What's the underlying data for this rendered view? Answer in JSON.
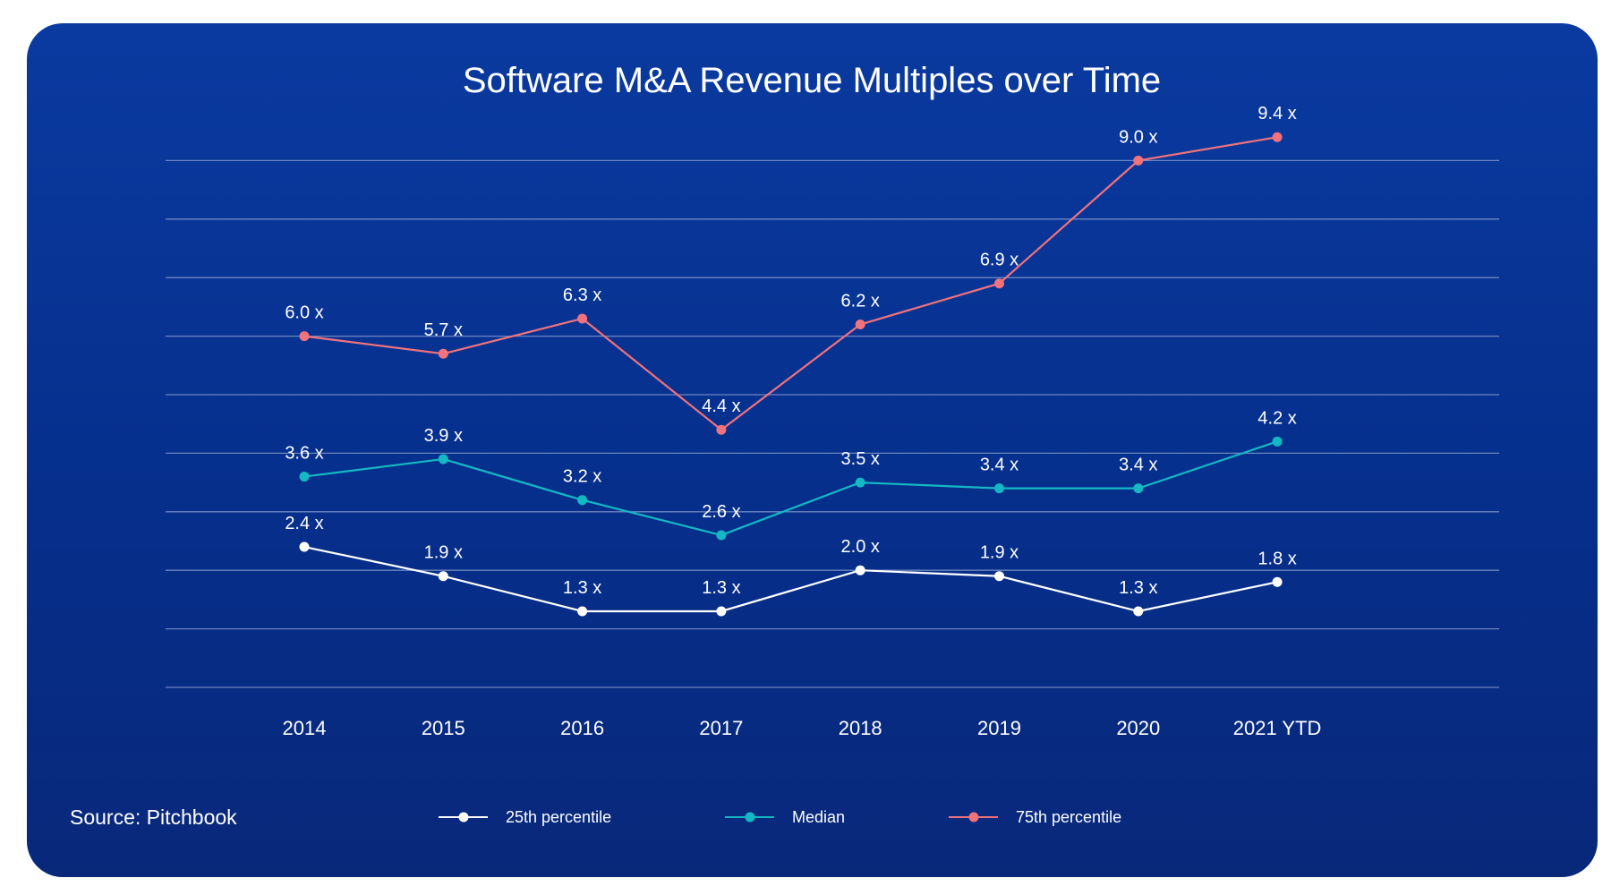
{
  "chart_data": {
    "type": "line",
    "title": "Software M&A Revenue Multiples over Time",
    "categories": [
      "2014",
      "2015",
      "2016",
      "2017",
      "2018",
      "2019",
      "2020",
      "2021 YTD"
    ],
    "ylim": [
      0,
      10
    ],
    "grid": true,
    "xlabel": "",
    "ylabel": "",
    "series": [
      {
        "name": "25th percentile",
        "color": "#ffffff",
        "values": [
          2.4,
          1.9,
          1.3,
          1.3,
          2.0,
          1.9,
          1.3,
          1.8
        ],
        "labels": [
          "2.4 x",
          "1.9 x",
          "1.3 x",
          "1.3 x",
          "2.0 x",
          "1.9 x",
          "1.3 x",
          "1.8 x"
        ]
      },
      {
        "name": "Median",
        "color": "#14b8c4",
        "values": [
          3.6,
          3.9,
          3.2,
          2.6,
          3.5,
          3.4,
          3.4,
          4.2
        ],
        "labels": [
          "3.6 x",
          "3.9 x",
          "3.2 x",
          "2.6 x",
          "3.5 x",
          "3.4 x",
          "3.4 x",
          "4.2 x"
        ]
      },
      {
        "name": "75th percentile",
        "color": "#f0727c",
        "values": [
          6.0,
          5.7,
          6.3,
          4.4,
          6.2,
          6.9,
          9.0,
          9.4
        ],
        "labels": [
          "6.0 x",
          "5.7 x",
          "6.3 x",
          "4.4 x",
          "6.2 x",
          "6.9 x",
          "9.0 x",
          "9.4 x"
        ]
      }
    ],
    "legend_position": "bottom",
    "source": "Source: Pitchbook"
  },
  "colors": {
    "background": "#062f8c",
    "gridline": "#8fa3cf"
  }
}
